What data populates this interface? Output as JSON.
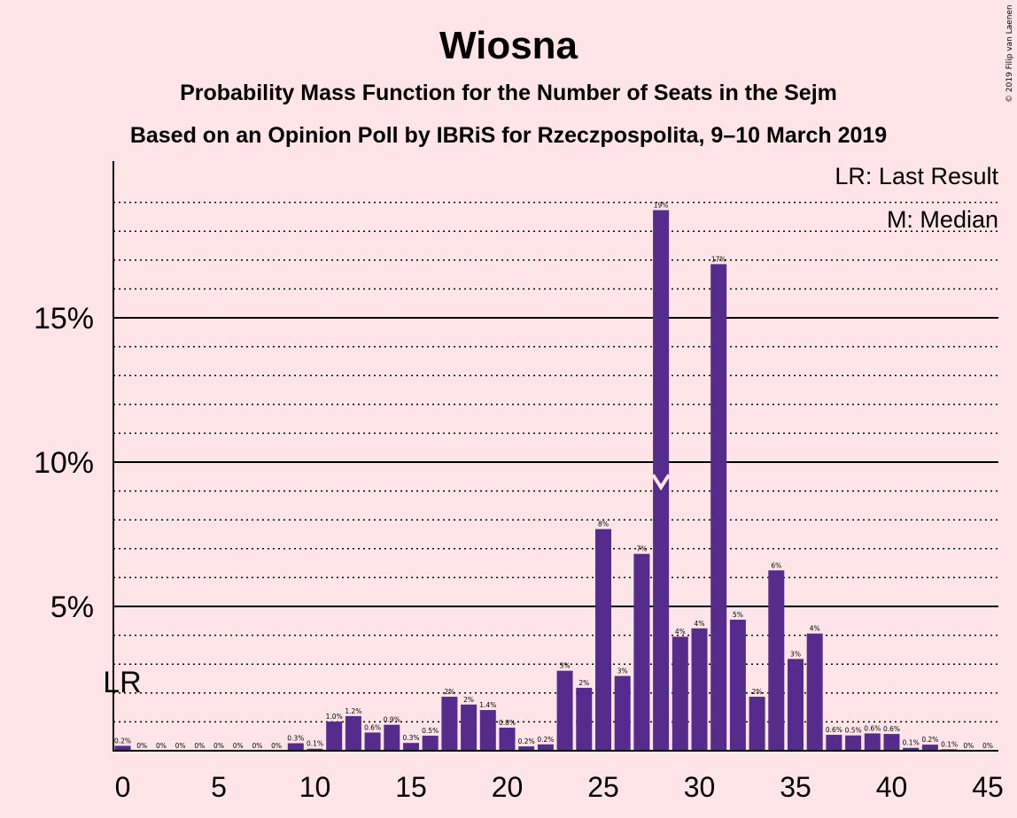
{
  "chart_data": {
    "type": "bar",
    "title": "Wiosna",
    "subtitle": "Probability Mass Function for the Number of Seats in the Sejm",
    "subtitle2": "Based on an Opinion Poll by IBRiS for Rzeczpospolita, 9–10 March 2019",
    "credit": "© 2019 Filip van Laenen",
    "legend": [
      "LR: Last Result",
      "M: Median"
    ],
    "legend_position": "top-right",
    "last_result_label": "LR",
    "last_result_seats": 0,
    "median_seats": 28,
    "bar_color": "#552c8c",
    "ylim": [
      0,
      0.195
    ],
    "yticks": [
      {
        "value": 0.05,
        "label": "5%"
      },
      {
        "value": 0.1,
        "label": "10%"
      },
      {
        "value": 0.15,
        "label": "15%"
      }
    ],
    "xticks": [
      0,
      5,
      10,
      15,
      20,
      25,
      30,
      35,
      40,
      45
    ],
    "grid_minor_step": 0.01,
    "grid_major_step": 0.05,
    "bars": [
      {
        "seats": 0,
        "value": 0.0017,
        "label": "0.2%"
      },
      {
        "seats": 1,
        "value": 0.0,
        "label": "0%"
      },
      {
        "seats": 2,
        "value": 0.0,
        "label": "0%"
      },
      {
        "seats": 3,
        "value": 0.0,
        "label": "0%"
      },
      {
        "seats": 4,
        "value": 0.0,
        "label": "0%"
      },
      {
        "seats": 5,
        "value": 0.0,
        "label": "0%"
      },
      {
        "seats": 6,
        "value": 0.0,
        "label": "0%"
      },
      {
        "seats": 7,
        "value": 0.0,
        "label": "0%"
      },
      {
        "seats": 8,
        "value": 0.0,
        "label": "0%"
      },
      {
        "seats": 9,
        "value": 0.0026,
        "label": "0.3%"
      },
      {
        "seats": 10,
        "value": 0.0007,
        "label": "0.1%"
      },
      {
        "seats": 11,
        "value": 0.0101,
        "label": "1.0%"
      },
      {
        "seats": 12,
        "value": 0.012,
        "label": "1.2%"
      },
      {
        "seats": 13,
        "value": 0.0063,
        "label": "0.6%"
      },
      {
        "seats": 14,
        "value": 0.009,
        "label": "0.9%"
      },
      {
        "seats": 15,
        "value": 0.0027,
        "label": "0.3%"
      },
      {
        "seats": 16,
        "value": 0.0052,
        "label": "0.5%"
      },
      {
        "seats": 17,
        "value": 0.0187,
        "label": "2%"
      },
      {
        "seats": 18,
        "value": 0.016,
        "label": "2%"
      },
      {
        "seats": 19,
        "value": 0.0141,
        "label": "1.4%"
      },
      {
        "seats": 20,
        "value": 0.008,
        "label": "0.8%"
      },
      {
        "seats": 21,
        "value": 0.0015,
        "label": "0.2%"
      },
      {
        "seats": 22,
        "value": 0.0022,
        "label": "0.2%"
      },
      {
        "seats": 23,
        "value": 0.0277,
        "label": "3%"
      },
      {
        "seats": 24,
        "value": 0.0218,
        "label": "2%"
      },
      {
        "seats": 25,
        "value": 0.0768,
        "label": "8%"
      },
      {
        "seats": 26,
        "value": 0.0259,
        "label": "3%"
      },
      {
        "seats": 27,
        "value": 0.0682,
        "label": "7%"
      },
      {
        "seats": 28,
        "value": 0.1873,
        "label": "19%"
      },
      {
        "seats": 29,
        "value": 0.0395,
        "label": "4%"
      },
      {
        "seats": 30,
        "value": 0.0424,
        "label": "4%"
      },
      {
        "seats": 31,
        "value": 0.1686,
        "label": "17%"
      },
      {
        "seats": 32,
        "value": 0.0454,
        "label": "5%"
      },
      {
        "seats": 33,
        "value": 0.0187,
        "label": "2%"
      },
      {
        "seats": 34,
        "value": 0.0625,
        "label": "6%"
      },
      {
        "seats": 35,
        "value": 0.0318,
        "label": "3%"
      },
      {
        "seats": 36,
        "value": 0.0406,
        "label": "4%"
      },
      {
        "seats": 37,
        "value": 0.0055,
        "label": "0.6%"
      },
      {
        "seats": 38,
        "value": 0.0053,
        "label": "0.5%"
      },
      {
        "seats": 39,
        "value": 0.006,
        "label": "0.6%"
      },
      {
        "seats": 40,
        "value": 0.0058,
        "label": "0.6%"
      },
      {
        "seats": 41,
        "value": 0.001,
        "label": "0.1%"
      },
      {
        "seats": 42,
        "value": 0.0021,
        "label": "0.2%"
      },
      {
        "seats": 43,
        "value": 0.0005,
        "label": "0.1%"
      },
      {
        "seats": 44,
        "value": 0.0,
        "label": "0%"
      },
      {
        "seats": 45,
        "value": 0.0,
        "label": "0%"
      }
    ]
  }
}
